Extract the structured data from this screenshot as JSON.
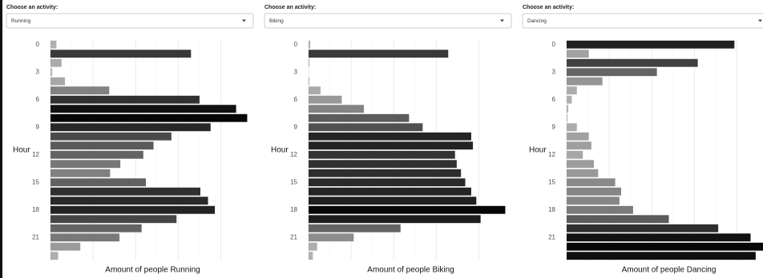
{
  "controls": [
    {
      "label": "Choose an activity:",
      "selected": "Running"
    },
    {
      "label": "Choose an activity:",
      "selected": "Biking"
    },
    {
      "label": "Choose an activity:",
      "selected": "Dancing"
    }
  ],
  "chart_data": [
    {
      "type": "bar",
      "orientation": "horizontal",
      "x_label": "Amount of people Running",
      "y_label": "Hour",
      "categories": [
        0,
        null,
        null,
        3,
        null,
        null,
        6,
        null,
        null,
        9,
        null,
        null,
        12,
        null,
        null,
        15,
        null,
        null,
        18,
        null,
        null,
        21,
        null,
        null
      ],
      "values": [
        7,
        165,
        13,
        2,
        17,
        69,
        175,
        218,
        231,
        188,
        142,
        121,
        109,
        82,
        70,
        112,
        176,
        185,
        193,
        148,
        107,
        81,
        35,
        9
      ],
      "xlim": [
        0,
        240
      ],
      "xticks": [
        0,
        50,
        100,
        150,
        200
      ],
      "grid": true,
      "color_low": "#b5b5b5",
      "color_high": "#000000"
    },
    {
      "type": "bar",
      "orientation": "horizontal",
      "x_label": "Amount of people Biking",
      "y_label": "Hour",
      "categories": [
        0,
        null,
        null,
        3,
        null,
        null,
        6,
        null,
        null,
        9,
        null,
        null,
        12,
        null,
        null,
        15,
        null,
        null,
        18,
        null,
        null,
        21,
        null,
        null
      ],
      "values": [
        2,
        164,
        1,
        0,
        1,
        14,
        39,
        65,
        118,
        134,
        191,
        193,
        172,
        174,
        179,
        184,
        191,
        197,
        231,
        202,
        108,
        53,
        10,
        5
      ],
      "xlim": [
        0,
        240
      ],
      "xticks": [
        0,
        50,
        100,
        150,
        200
      ],
      "grid": true,
      "color_low": "#b5b5b5",
      "color_high": "#000000"
    },
    {
      "type": "bar",
      "orientation": "horizontal",
      "x_label": "Amount of people Dancing",
      "y_label": "Hour",
      "categories": [
        0,
        null,
        null,
        3,
        null,
        null,
        6,
        null,
        null,
        9,
        null,
        null,
        12,
        null,
        null,
        15,
        null,
        null,
        18,
        null,
        null,
        21,
        null,
        null
      ],
      "values": [
        197,
        26,
        154,
        106,
        42,
        12,
        6,
        2,
        1,
        12,
        26,
        29,
        19,
        32,
        37,
        57,
        64,
        62,
        78,
        120,
        178,
        216,
        231,
        222
      ],
      "xlim": [
        0,
        240
      ],
      "xticks": [
        0,
        50,
        100,
        150,
        200
      ],
      "grid": true,
      "color_low": "#b5b5b5",
      "color_high": "#000000"
    }
  ]
}
